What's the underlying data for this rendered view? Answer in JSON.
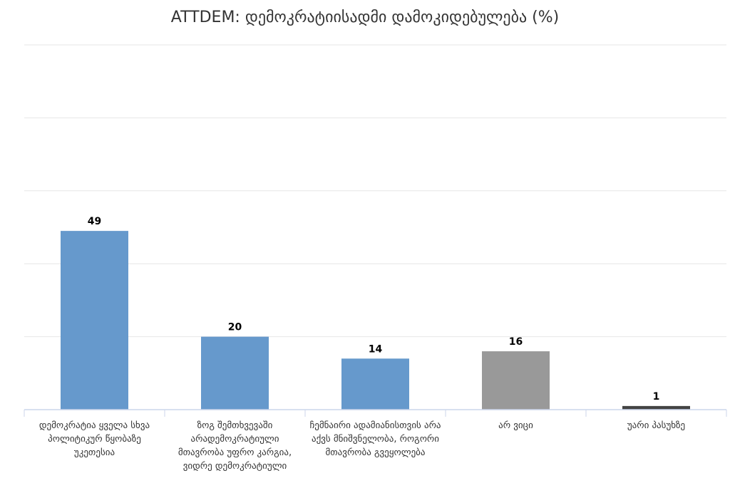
{
  "chart_data": {
    "type": "bar",
    "title": "ATTDEM: დემოკრატიისადმი დამოკიდებულება (%)",
    "xlabel": "",
    "ylabel": "",
    "ylim": [
      0,
      100
    ],
    "grid": true,
    "categories": [
      "დემოკრატია ყველა სხვა პოლიტიკურ წყობაზე უკეთესია",
      "ზოგ შემთხვევაში არადემოკრატიული მთავრობა უფრო კარგია, ვიდრე დემოკრატიული",
      "ჩემნაირი ადამიანისთვის არა აქვს მნიშვნელობა, როგორი მთავრობა გვეყოლება",
      "არ ვიცი",
      "უარი პასუხზე"
    ],
    "values": [
      49,
      20,
      14,
      16,
      1
    ],
    "data_labels": [
      "49",
      "20",
      "14",
      "16",
      "1"
    ],
    "colors": [
      "#6699cc",
      "#6699cc",
      "#6699cc",
      "#999999",
      "#444444"
    ],
    "gridline_color": "#e6e6e6",
    "axis_color": "#ccd6eb"
  }
}
